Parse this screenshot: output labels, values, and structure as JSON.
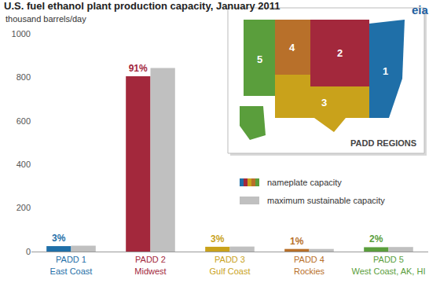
{
  "chart_data": {
    "type": "bar",
    "title": "U.S. fuel ethanol plant production capacity, January 2011",
    "subtitle": "thousand barrels/day",
    "logo": "eia",
    "categories": [
      "PADD 1\nEast Coast",
      "PADD 2\nMidwest",
      "PADD 3\nGulf Coast",
      "PADD 4\nRockies",
      "PADD 5\nWest Coast, AK, HI"
    ],
    "series": [
      {
        "name": "nameplate capacity",
        "colors": [
          "#1f6fa8",
          "#a3283c",
          "#c9a21b",
          "#b8702a",
          "#5a9e3c"
        ],
        "values": [
          25,
          805,
          22,
          12,
          20
        ],
        "share_labels": [
          "3%",
          "91%",
          "3%",
          "1%",
          "2%"
        ]
      },
      {
        "name": "maximum sustainable capacity",
        "color": "#c0c0c0",
        "values": [
          27,
          843,
          23,
          12,
          21
        ]
      }
    ],
    "ylim": [
      0,
      1000
    ],
    "yticks": [
      0,
      200,
      400,
      600,
      800,
      1000
    ],
    "grid": false,
    "inset": {
      "title": "PADD REGIONS",
      "region_labels": [
        "1",
        "2",
        "3",
        "4",
        "5"
      ]
    }
  }
}
